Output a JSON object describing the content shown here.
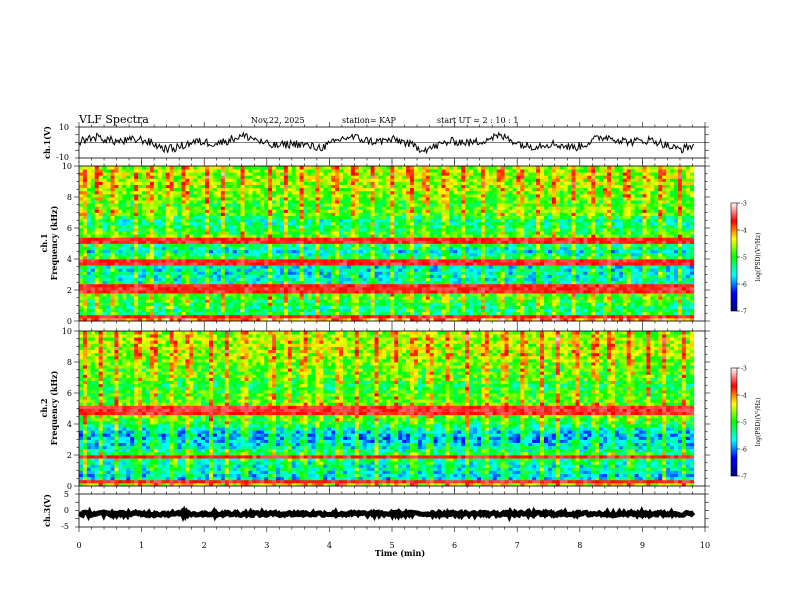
{
  "header": {
    "title": "VLF Spectra",
    "date": "Nov.22, 2025",
    "station": "station= KAP",
    "start": "start  UT =   2  : 10 : 1"
  },
  "chart_data": [
    {
      "type": "line",
      "name": "ch1-waveform",
      "ylabel": "ch.1(V)",
      "ylim": [
        -10,
        10
      ],
      "ytick_labels": [
        "10",
        "-10"
      ],
      "xlim": [
        0,
        10
      ]
    },
    {
      "type": "heatmap",
      "name": "ch1-spectrogram",
      "ylabel": "ch.1 Frequency (kHz)",
      "ylabel_top": "ch.1",
      "ylabel_bottom": "Frequency (kHz)",
      "ylim": [
        0,
        10
      ],
      "ytick_labels": [
        "0",
        "2",
        "4",
        "6",
        "8",
        "10"
      ],
      "xlim": [
        0,
        9.82
      ],
      "data_end_min": 9.82,
      "mean_level_by_freq": {
        "freq_khz": [
          0.0,
          0.3,
          0.6,
          1.0,
          1.5,
          2.0,
          2.5,
          3.0,
          3.5,
          4.0,
          4.5,
          5.0,
          5.5,
          6.0,
          6.5,
          7.0,
          7.5,
          8.0,
          8.5,
          9.0,
          9.5,
          10.0
        ],
        "log_psd": [
          -3.6,
          -5.0,
          -5.4,
          -5.3,
          -5.0,
          -4.9,
          -5.5,
          -5.6,
          -5.7,
          -5.0,
          -5.7,
          -5.2,
          -4.9,
          -5.3,
          -5.4,
          -4.8,
          -5.0,
          -4.8,
          -4.7,
          -4.6,
          -4.6,
          -4.7
        ]
      },
      "emission_lines_khz": [
        0.3,
        2.0,
        2.3,
        3.8,
        5.2
      ],
      "impulsive_events_min": [
        0.08,
        0.3,
        0.55,
        0.9,
        1.15,
        1.45,
        1.7,
        2.05,
        2.3,
        2.6,
        3.05,
        3.3,
        3.55,
        3.8,
        4.1,
        4.4,
        4.7,
        5.0,
        5.3,
        5.55,
        5.85,
        6.15,
        6.45,
        6.75,
        7.05,
        7.35,
        7.6,
        7.9,
        8.2,
        8.45,
        8.75,
        9.05,
        9.3,
        9.6
      ]
    },
    {
      "type": "heatmap",
      "name": "ch2-spectrogram",
      "ylabel": "ch.2 Frequency (kHz)",
      "ylabel_top": "ch.2",
      "ylabel_bottom": "Frequency (kHz)",
      "ylim": [
        0,
        10
      ],
      "ytick_labels": [
        "0",
        "2",
        "4",
        "6",
        "8",
        "10"
      ],
      "xlim": [
        0,
        9.82
      ],
      "data_end_min": 9.82,
      "mean_level_by_freq": {
        "freq_khz": [
          0.0,
          0.3,
          0.6,
          1.0,
          1.5,
          2.0,
          2.5,
          3.0,
          3.5,
          4.0,
          4.5,
          5.0,
          5.5,
          6.0,
          6.5,
          7.0,
          7.5,
          8.0,
          8.5,
          9.0,
          9.5,
          10.0
        ],
        "log_psd": [
          -3.8,
          -5.7,
          -5.8,
          -5.6,
          -5.5,
          -5.1,
          -5.6,
          -5.9,
          -5.8,
          -5.2,
          -4.9,
          -4.7,
          -4.9,
          -5.0,
          -5.2,
          -4.9,
          -4.9,
          -4.8,
          -4.6,
          -4.6,
          -4.6,
          -4.7
        ]
      },
      "emission_lines_khz": [
        0.3,
        1.9,
        4.8,
        5.0,
        5.1
      ],
      "impulsive_events_min": [
        0.1,
        0.35,
        0.6,
        0.95,
        1.2,
        1.5,
        1.75,
        2.1,
        2.35,
        2.65,
        3.1,
        3.35,
        3.6,
        3.85,
        4.15,
        4.45,
        4.75,
        5.05,
        5.35,
        5.6,
        5.9,
        6.2,
        6.5,
        6.8,
        7.1,
        7.4,
        7.65,
        7.95,
        8.25,
        8.5,
        8.8,
        9.1,
        9.35,
        9.65
      ]
    },
    {
      "type": "line",
      "name": "ch3-waveform",
      "ylabel": "ch.3(V)",
      "ylim": [
        -5,
        5
      ],
      "ytick_labels": [
        "5",
        "0",
        "-5"
      ],
      "xlim": [
        0,
        10
      ],
      "mean_value": -1.0,
      "spread": 0.5
    }
  ],
  "x_axis": {
    "label": "Time  (min)",
    "tick_labels": [
      "0",
      "1",
      "2",
      "3",
      "4",
      "5",
      "6",
      "7",
      "8",
      "9",
      "10"
    ]
  },
  "colorbar": {
    "label": "log(PSD)(V²/Hz)",
    "tick_labels": [
      "-3",
      "-4",
      "-5",
      "-6",
      "-7"
    ],
    "range": [
      -7,
      -3
    ],
    "colors": [
      "#000080",
      "#0000ff",
      "#00ffff",
      "#00ff00",
      "#ffff00",
      "#ff0000",
      "#ffffff"
    ]
  }
}
